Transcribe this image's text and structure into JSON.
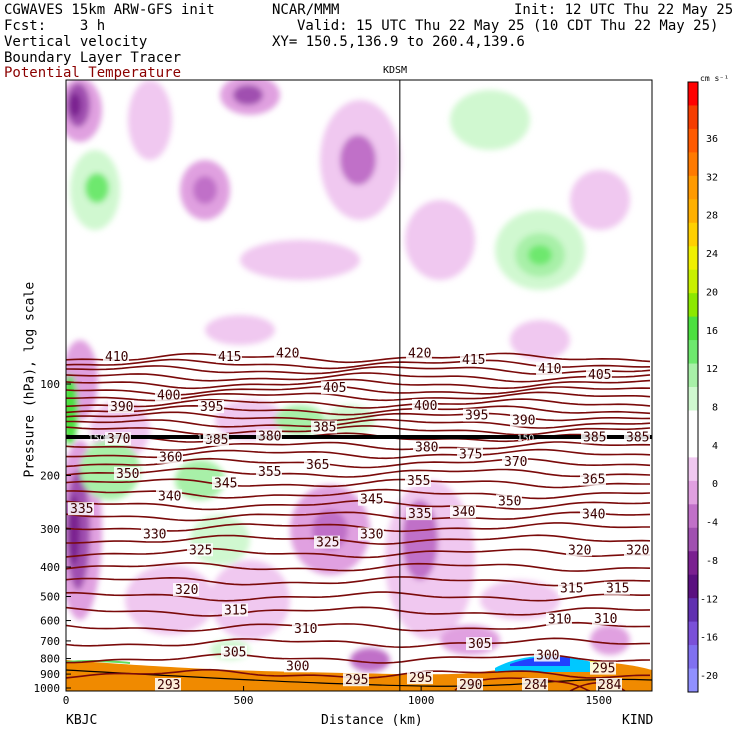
{
  "header": {
    "model": "CGWAVES 15km ARW-GFS init",
    "org": "NCAR/MMM",
    "init": "Init: 12 UTC Thu 22 May 25",
    "fcst": "Fcst:    3 h",
    "valid": "Valid: 15 UTC Thu 22 May 25 (10 CDT Thu 22 May 25)",
    "field1": "Vertical velocity",
    "xy": "XY= 150.5,136.9 to 260.4,139.6",
    "field2": "Boundary Layer Tracer",
    "field3": "Potential Temperature"
  },
  "colors": {
    "theta_contour": "#7a0a0a",
    "tropopause_line": "#000000",
    "terrain": "#f08a00",
    "title_red": "#8b0000"
  },
  "chart_data": {
    "type": "heatmap",
    "title": "KDSM",
    "xlabel": "Distance (km)",
    "ylabel": "Pressure (hPa), log scale",
    "xlim": [
      0,
      1650
    ],
    "x_ticks": [
      0,
      500,
      1000,
      1500
    ],
    "x_endpoint_labels": {
      "left": "KBJC",
      "right": "KIND"
    },
    "marker_km": 940,
    "y_scale": "log",
    "y_ticks": [
      100,
      200,
      300,
      400,
      500,
      600,
      700,
      800,
      900,
      1000
    ],
    "grid": false,
    "colorbar": {
      "unit": "cm s⁻¹",
      "ticks": [
        "36",
        "32",
        "28",
        "24",
        "20",
        "16",
        "12",
        "8",
        "4",
        "0",
        "-4",
        "-8",
        "-12",
        "-16",
        "-20"
      ],
      "colors": [
        "#ff0000",
        "#f53d00",
        "#ff5a00",
        "#ff7a00",
        "#ff9a00",
        "#ffb000",
        "#ffd000",
        "#f0f000",
        "#c8f000",
        "#8ce800",
        "#4ce040",
        "#6ee86e",
        "#a8f0a8",
        "#d0f8d0",
        "#ffffff",
        "#ffffff",
        "#f0c8f0",
        "#e0a0e0",
        "#c070c8",
        "#a050b0",
        "#7a2090",
        "#5a1080",
        "#6030b0",
        "#7a50d8",
        "#8070f0",
        "#9090ff"
      ]
    },
    "theta_labels": [
      {
        "v": "410",
        "x": 105,
        "p": 82
      },
      {
        "v": "415",
        "x": 218,
        "p": 82
      },
      {
        "v": "420",
        "x": 276,
        "p": 80
      },
      {
        "v": "420",
        "x": 408,
        "p": 80
      },
      {
        "v": "415",
        "x": 462,
        "p": 84
      },
      {
        "v": "410",
        "x": 538,
        "p": 90
      },
      {
        "v": "405",
        "x": 588,
        "p": 94
      },
      {
        "v": "390",
        "x": 110,
        "p": 120
      },
      {
        "v": "400",
        "x": 157,
        "p": 110
      },
      {
        "v": "395",
        "x": 200,
        "p": 120
      },
      {
        "v": "405",
        "x": 323,
        "p": 104
      },
      {
        "v": "400",
        "x": 414,
        "p": 119
      },
      {
        "v": "395",
        "x": 465,
        "p": 128
      },
      {
        "v": "390",
        "x": 512,
        "p": 133
      },
      {
        "v": "370",
        "x": 107,
        "p": 153
      },
      {
        "v": "385",
        "x": 205,
        "p": 154
      },
      {
        "v": "380",
        "x": 258,
        "p": 150
      },
      {
        "v": "385",
        "x": 313,
        "p": 140
      },
      {
        "v": "380",
        "x": 415,
        "p": 163
      },
      {
        "v": "375",
        "x": 459,
        "p": 172
      },
      {
        "v": "370",
        "x": 504,
        "p": 182
      },
      {
        "v": "385",
        "x": 583,
        "p": 151
      },
      {
        "v": "385",
        "x": 626,
        "p": 151
      },
      {
        "v": "360",
        "x": 159,
        "p": 176
      },
      {
        "v": "365",
        "x": 306,
        "p": 186
      },
      {
        "v": "355",
        "x": 258,
        "p": 196
      },
      {
        "v": "350",
        "x": 116,
        "p": 199
      },
      {
        "v": "345",
        "x": 214,
        "p": 214
      },
      {
        "v": "355",
        "x": 407,
        "p": 210
      },
      {
        "v": "365",
        "x": 582,
        "p": 208
      },
      {
        "v": "340",
        "x": 158,
        "p": 236
      },
      {
        "v": "345",
        "x": 360,
        "p": 242
      },
      {
        "v": "350",
        "x": 498,
        "p": 245
      },
      {
        "v": "335",
        "x": 70,
        "p": 260
      },
      {
        "v": "335",
        "x": 408,
        "p": 270
      },
      {
        "v": "340",
        "x": 452,
        "p": 266
      },
      {
        "v": "340",
        "x": 582,
        "p": 271
      },
      {
        "v": "330",
        "x": 143,
        "p": 315
      },
      {
        "v": "330",
        "x": 360,
        "p": 315
      },
      {
        "v": "325",
        "x": 189,
        "p": 355
      },
      {
        "v": "325",
        "x": 316,
        "p": 335
      },
      {
        "v": "320",
        "x": 568,
        "p": 355
      },
      {
        "v": "320",
        "x": 626,
        "p": 355
      },
      {
        "v": "320",
        "x": 175,
        "p": 480
      },
      {
        "v": "315",
        "x": 224,
        "p": 560
      },
      {
        "v": "315",
        "x": 560,
        "p": 475
      },
      {
        "v": "315",
        "x": 606,
        "p": 475
      },
      {
        "v": "310",
        "x": 294,
        "p": 645
      },
      {
        "v": "310",
        "x": 548,
        "p": 600
      },
      {
        "v": "310",
        "x": 594,
        "p": 597
      },
      {
        "v": "305",
        "x": 223,
        "p": 770
      },
      {
        "v": "305",
        "x": 468,
        "p": 723
      },
      {
        "v": "300",
        "x": 286,
        "p": 855
      },
      {
        "v": "300",
        "x": 536,
        "p": 788
      },
      {
        "v": "295",
        "x": 345,
        "p": 950
      },
      {
        "v": "295",
        "x": 409,
        "p": 935
      },
      {
        "v": "290",
        "x": 459,
        "p": 1000
      },
      {
        "v": "295",
        "x": 592,
        "p": 870
      },
      {
        "v": "293",
        "x": 157,
        "p": 1200
      },
      {
        "v": "284",
        "x": 524,
        "p": 1310
      },
      {
        "v": "284",
        "x": 598,
        "p": 1310
      }
    ],
    "tropopause_labels": [
      {
        "v": "150",
        "x": 88
      },
      {
        "v": "150",
        "x": 197
      },
      {
        "v": "150",
        "x": 517
      }
    ]
  }
}
